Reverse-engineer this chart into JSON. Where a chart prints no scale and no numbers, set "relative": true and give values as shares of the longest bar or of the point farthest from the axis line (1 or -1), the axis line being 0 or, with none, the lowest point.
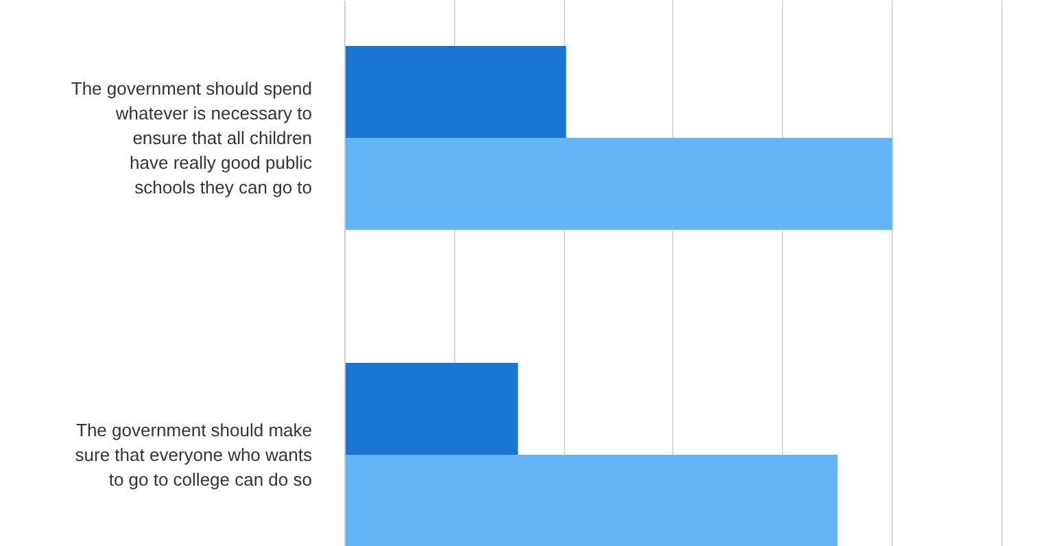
{
  "chart_data": {
    "type": "bar",
    "orientation": "horizontal",
    "relative": true,
    "grid": "x",
    "categories": [
      "The government should spend whatever is necessary to ensure that all children have really good public schools they can go to",
      "The government should make sure that everyone who wants to go to college can do so"
    ],
    "series": [
      {
        "color": "#1976d2",
        "values": [
          0.404,
          0.316
        ]
      },
      {
        "color": "#64b5f6",
        "values": [
          1,
          0.9
        ]
      }
    ]
  }
}
